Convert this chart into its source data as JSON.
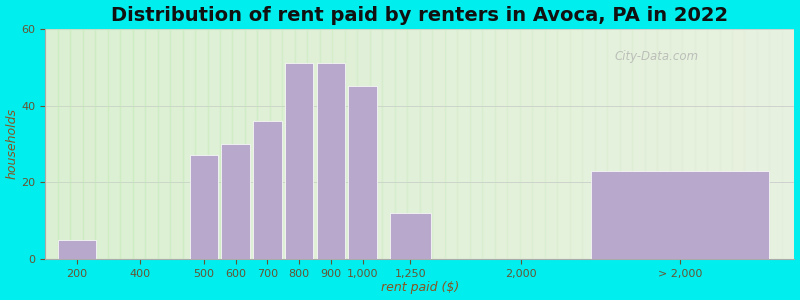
{
  "title": "Distribution of rent paid by renters in Avoca, PA in 2022",
  "xlabel": "rent paid ($)",
  "ylabel": "households",
  "bar_labels": [
    "200",
    "400",
    "500",
    "600",
    "700",
    "800",
    "900",
    "1,000",
    "1,250",
    "2,000",
    "> 2,000"
  ],
  "bar_values": [
    5,
    0,
    27,
    30,
    36,
    51,
    51,
    45,
    12,
    0,
    23
  ],
  "bar_color": "#b8a8cc",
  "background_color": "#00eeee",
  "plot_bg_color": "#e8f2e0",
  "ylim": [
    0,
    60
  ],
  "yticks": [
    0,
    20,
    40,
    60
  ],
  "title_fontsize": 14,
  "axis_label_fontsize": 9,
  "tick_fontsize": 8,
  "watermark": "City-Data.com",
  "x_positions": [
    0.5,
    1.5,
    2.5,
    3.0,
    3.5,
    4.0,
    4.5,
    5.0,
    5.75,
    7.5,
    10.0
  ],
  "bar_widths": [
    0.6,
    0.6,
    0.45,
    0.45,
    0.45,
    0.45,
    0.45,
    0.45,
    0.65,
    0.0,
    2.8
  ],
  "xlim": [
    0,
    11.8
  ]
}
